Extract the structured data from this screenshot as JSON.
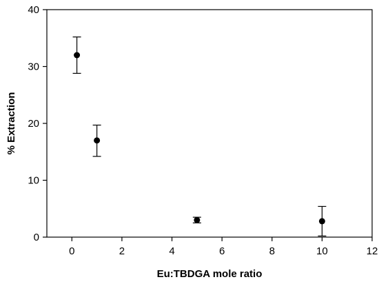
{
  "chart_data": {
    "type": "scatter",
    "title": "",
    "xlabel": "Eu:TBDGA mole ratio",
    "ylabel": "% Extraction",
    "xlim": [
      -1,
      12
    ],
    "ylim": [
      0,
      40
    ],
    "x_ticks": [
      0,
      2,
      4,
      6,
      8,
      10,
      12
    ],
    "y_ticks": [
      0,
      10,
      20,
      30,
      40
    ],
    "grid": false,
    "legend": "none",
    "marker_color": "#000000",
    "series": [
      {
        "points": [
          {
            "x": 0.2,
            "y": 32.0,
            "err_low": 3.2,
            "err_high": 3.2
          },
          {
            "x": 1.0,
            "y": 17.0,
            "err_low": 2.8,
            "err_high": 2.7
          },
          {
            "x": 5.0,
            "y": 3.0,
            "err_low": 0.5,
            "err_high": 0.5
          },
          {
            "x": 10.0,
            "y": 2.8,
            "err_low": 2.6,
            "err_high": 2.6
          }
        ]
      }
    ]
  }
}
